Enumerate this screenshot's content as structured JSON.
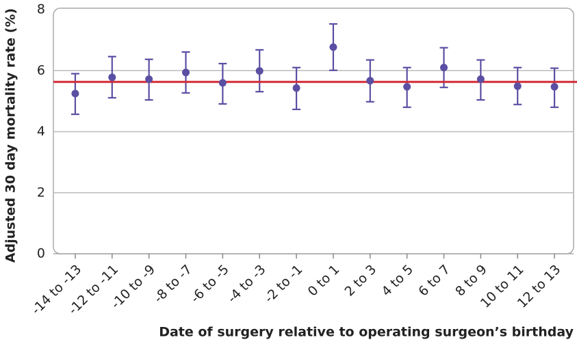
{
  "chart_data": {
    "type": "errorbar",
    "x_label": "Date of surgery relative to operating surgeon’s birthday",
    "y_label": "Adjusted 30 day mortality rate (%)",
    "categories": [
      "-14 to -13",
      "-12 to -11",
      "-10 to -9",
      "-8 to -7",
      "-6 to -5",
      "-4 to -3",
      "-2 to -1",
      "0 to 1",
      "2 to 3",
      "4 to 5",
      "6 to 7",
      "8 to 9",
      "10 to 11",
      "12 to 13"
    ],
    "series": [
      {
        "color": "#5a4fa3",
        "values": [
          5.25,
          5.78,
          5.72,
          5.94,
          5.6,
          5.99,
          5.43,
          6.77,
          5.67,
          5.47,
          6.1,
          5.72,
          5.49,
          5.47
        ],
        "lower": [
          4.57,
          5.11,
          5.04,
          5.27,
          4.91,
          5.31,
          4.73,
          6.01,
          4.98,
          4.8,
          5.45,
          5.04,
          4.89,
          4.8
        ],
        "upper": [
          5.9,
          6.46,
          6.37,
          6.61,
          6.23,
          6.68,
          6.1,
          7.53,
          6.35,
          6.1,
          6.75,
          6.35,
          6.1,
          6.08
        ]
      }
    ],
    "reference_line": {
      "value": 5.63,
      "color": "#d42a33"
    },
    "ylim": [
      0,
      8
    ],
    "yticks": [
      0,
      2,
      4,
      6,
      8
    ],
    "grid": true
  }
}
